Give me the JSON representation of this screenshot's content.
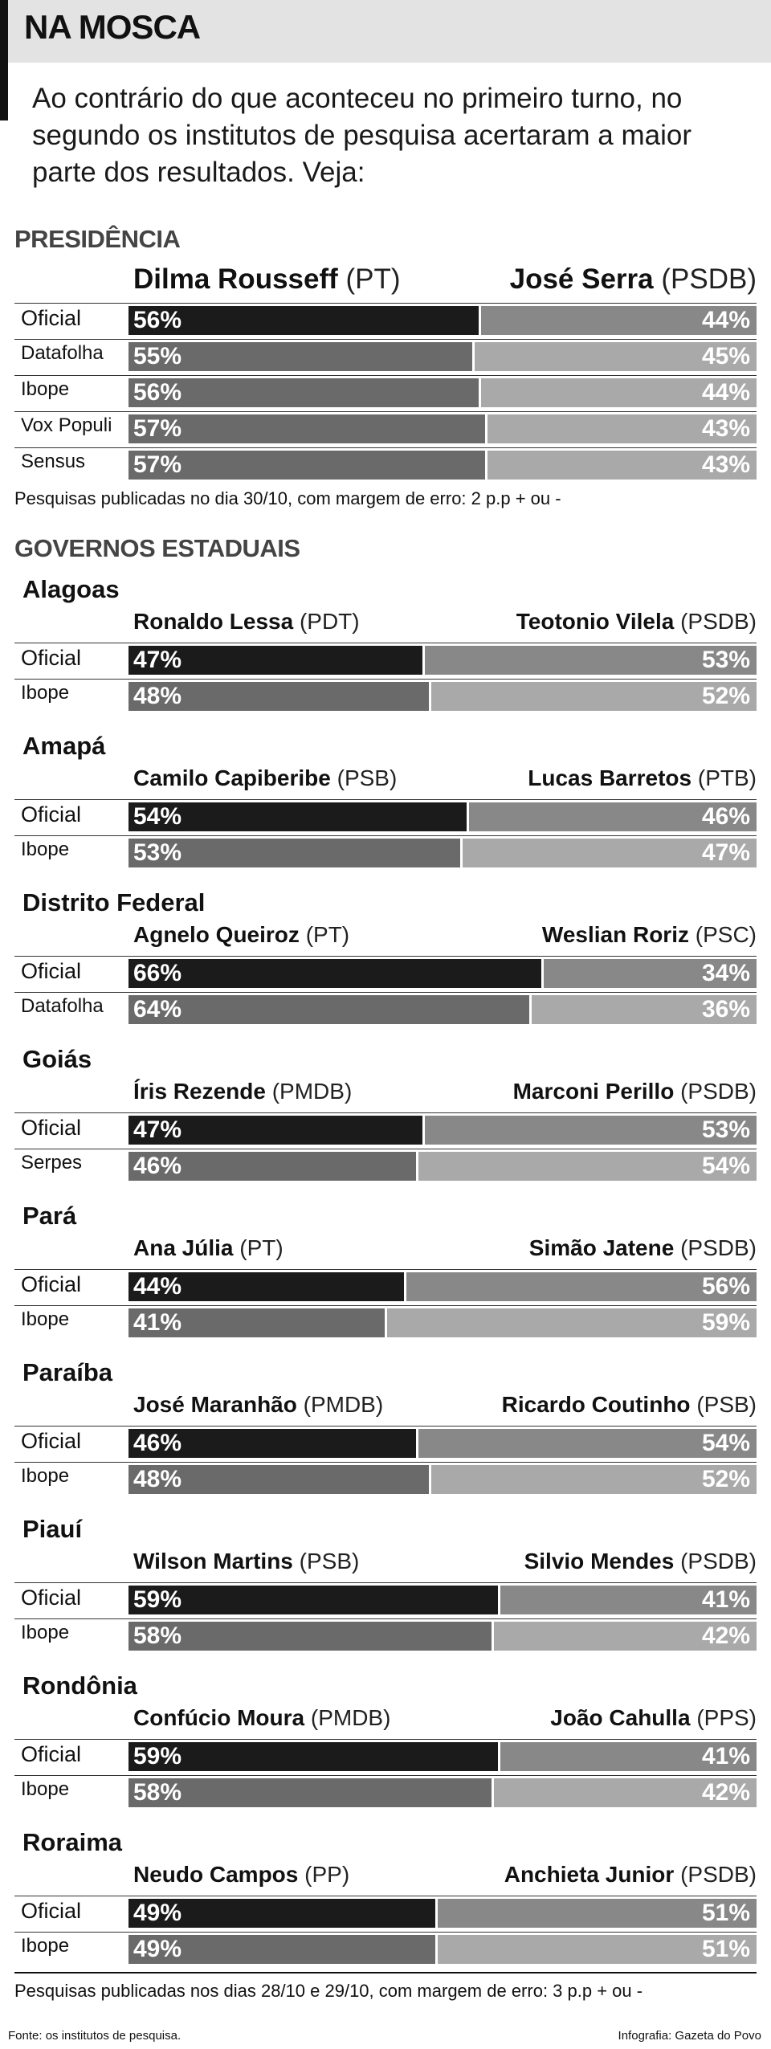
{
  "header": {
    "title": "NA MOSCA"
  },
  "intro": "Ao contrário do que aconteceu no primeiro turno, no segundo os institutos de pesquisa acertaram a maior parte dos resultados. Veja:",
  "chart_data": [
    {
      "type": "bar",
      "title": "PRESIDÊNCIA",
      "candidates": [
        {
          "name": "Dilma Rousseff",
          "party": "(PT)"
        },
        {
          "name": "José Serra",
          "party": "(PSDB)"
        }
      ],
      "rows": [
        {
          "label": "Oficial",
          "values": [
            56,
            44
          ]
        },
        {
          "label": "Datafolha",
          "values": [
            55,
            45
          ]
        },
        {
          "label": "Ibope",
          "values": [
            56,
            44
          ]
        },
        {
          "label": "Vox Populi",
          "values": [
            57,
            43
          ]
        },
        {
          "label": "Sensus",
          "values": [
            57,
            43
          ]
        }
      ],
      "note": "Pesquisas publicadas no dia 30/10, com margem de erro: 2 p.p + ou -"
    },
    {
      "type": "bar",
      "title": "GOVERNOS ESTADUAIS",
      "states": [
        {
          "name": "Alagoas",
          "candidates": [
            {
              "name": "Ronaldo Lessa",
              "party": "(PDT)"
            },
            {
              "name": "Teotonio Vilela",
              "party": "(PSDB)"
            }
          ],
          "rows": [
            {
              "label": "Oficial",
              "values": [
                47,
                53
              ]
            },
            {
              "label": "Ibope",
              "values": [
                48,
                52
              ]
            }
          ]
        },
        {
          "name": "Amapá",
          "candidates": [
            {
              "name": "Camilo Capiberibe",
              "party": "(PSB)"
            },
            {
              "name": "Lucas Barretos",
              "party": "(PTB)"
            }
          ],
          "rows": [
            {
              "label": "Oficial",
              "values": [
                54,
                46
              ]
            },
            {
              "label": "Ibope",
              "values": [
                53,
                47
              ]
            }
          ]
        },
        {
          "name": "Distrito Federal",
          "candidates": [
            {
              "name": "Agnelo Queiroz",
              "party": "(PT)"
            },
            {
              "name": "Weslian Roriz",
              "party": "(PSC)"
            }
          ],
          "rows": [
            {
              "label": "Oficial",
              "values": [
                66,
                34
              ]
            },
            {
              "label": "Datafolha",
              "values": [
                64,
                36
              ]
            }
          ]
        },
        {
          "name": "Goiás",
          "candidates": [
            {
              "name": "Íris Rezende",
              "party": "(PMDB)"
            },
            {
              "name": "Marconi Perillo",
              "party": "(PSDB)"
            }
          ],
          "rows": [
            {
              "label": "Oficial",
              "values": [
                47,
                53
              ]
            },
            {
              "label": "Serpes",
              "values": [
                46,
                54
              ]
            }
          ]
        },
        {
          "name": "Pará",
          "candidates": [
            {
              "name": "Ana Júlia",
              "party": "(PT)"
            },
            {
              "name": "Simão Jatene",
              "party": "(PSDB)"
            }
          ],
          "rows": [
            {
              "label": "Oficial",
              "values": [
                44,
                56
              ]
            },
            {
              "label": "Ibope",
              "values": [
                41,
                59
              ]
            }
          ]
        },
        {
          "name": "Paraíba",
          "candidates": [
            {
              "name": "José Maranhão",
              "party": "(PMDB)"
            },
            {
              "name": "Ricardo Coutinho",
              "party": "(PSB)"
            }
          ],
          "rows": [
            {
              "label": "Oficial",
              "values": [
                46,
                54
              ]
            },
            {
              "label": "Ibope",
              "values": [
                48,
                52
              ]
            }
          ]
        },
        {
          "name": "Piauí",
          "candidates": [
            {
              "name": "Wilson Martins",
              "party": "(PSB)"
            },
            {
              "name": "Silvio Mendes",
              "party": "(PSDB)"
            }
          ],
          "rows": [
            {
              "label": "Oficial",
              "values": [
                59,
                41
              ]
            },
            {
              "label": "Ibope",
              "values": [
                58,
                42
              ]
            }
          ]
        },
        {
          "name": "Rondônia",
          "candidates": [
            {
              "name": "Confúcio Moura",
              "party": "(PMDB)"
            },
            {
              "name": "João Cahulla",
              "party": "(PPS)"
            }
          ],
          "rows": [
            {
              "label": "Oficial",
              "values": [
                59,
                41
              ]
            },
            {
              "label": "Ibope",
              "values": [
                58,
                42
              ]
            }
          ]
        },
        {
          "name": "Roraima",
          "candidates": [
            {
              "name": "Neudo Campos",
              "party": "(PP)"
            },
            {
              "name": "Anchieta Junior",
              "party": "(PSDB)"
            }
          ],
          "rows": [
            {
              "label": "Oficial",
              "values": [
                49,
                51
              ]
            },
            {
              "label": "Ibope",
              "values": [
                49,
                51
              ]
            }
          ]
        }
      ],
      "note": "Pesquisas publicadas nos dias 28/10 e 29/10, com margem de erro: 3 p.p + ou -"
    }
  ],
  "colors": {
    "official_left": "#1b1b1b",
    "official_right": "#888888",
    "poll_left": "#6a6a6a",
    "poll_right": "#a9a9a9"
  },
  "footer": {
    "source": "Fonte: os institutos de pesquisa.",
    "credit": "Infografia: Gazeta do Povo"
  }
}
